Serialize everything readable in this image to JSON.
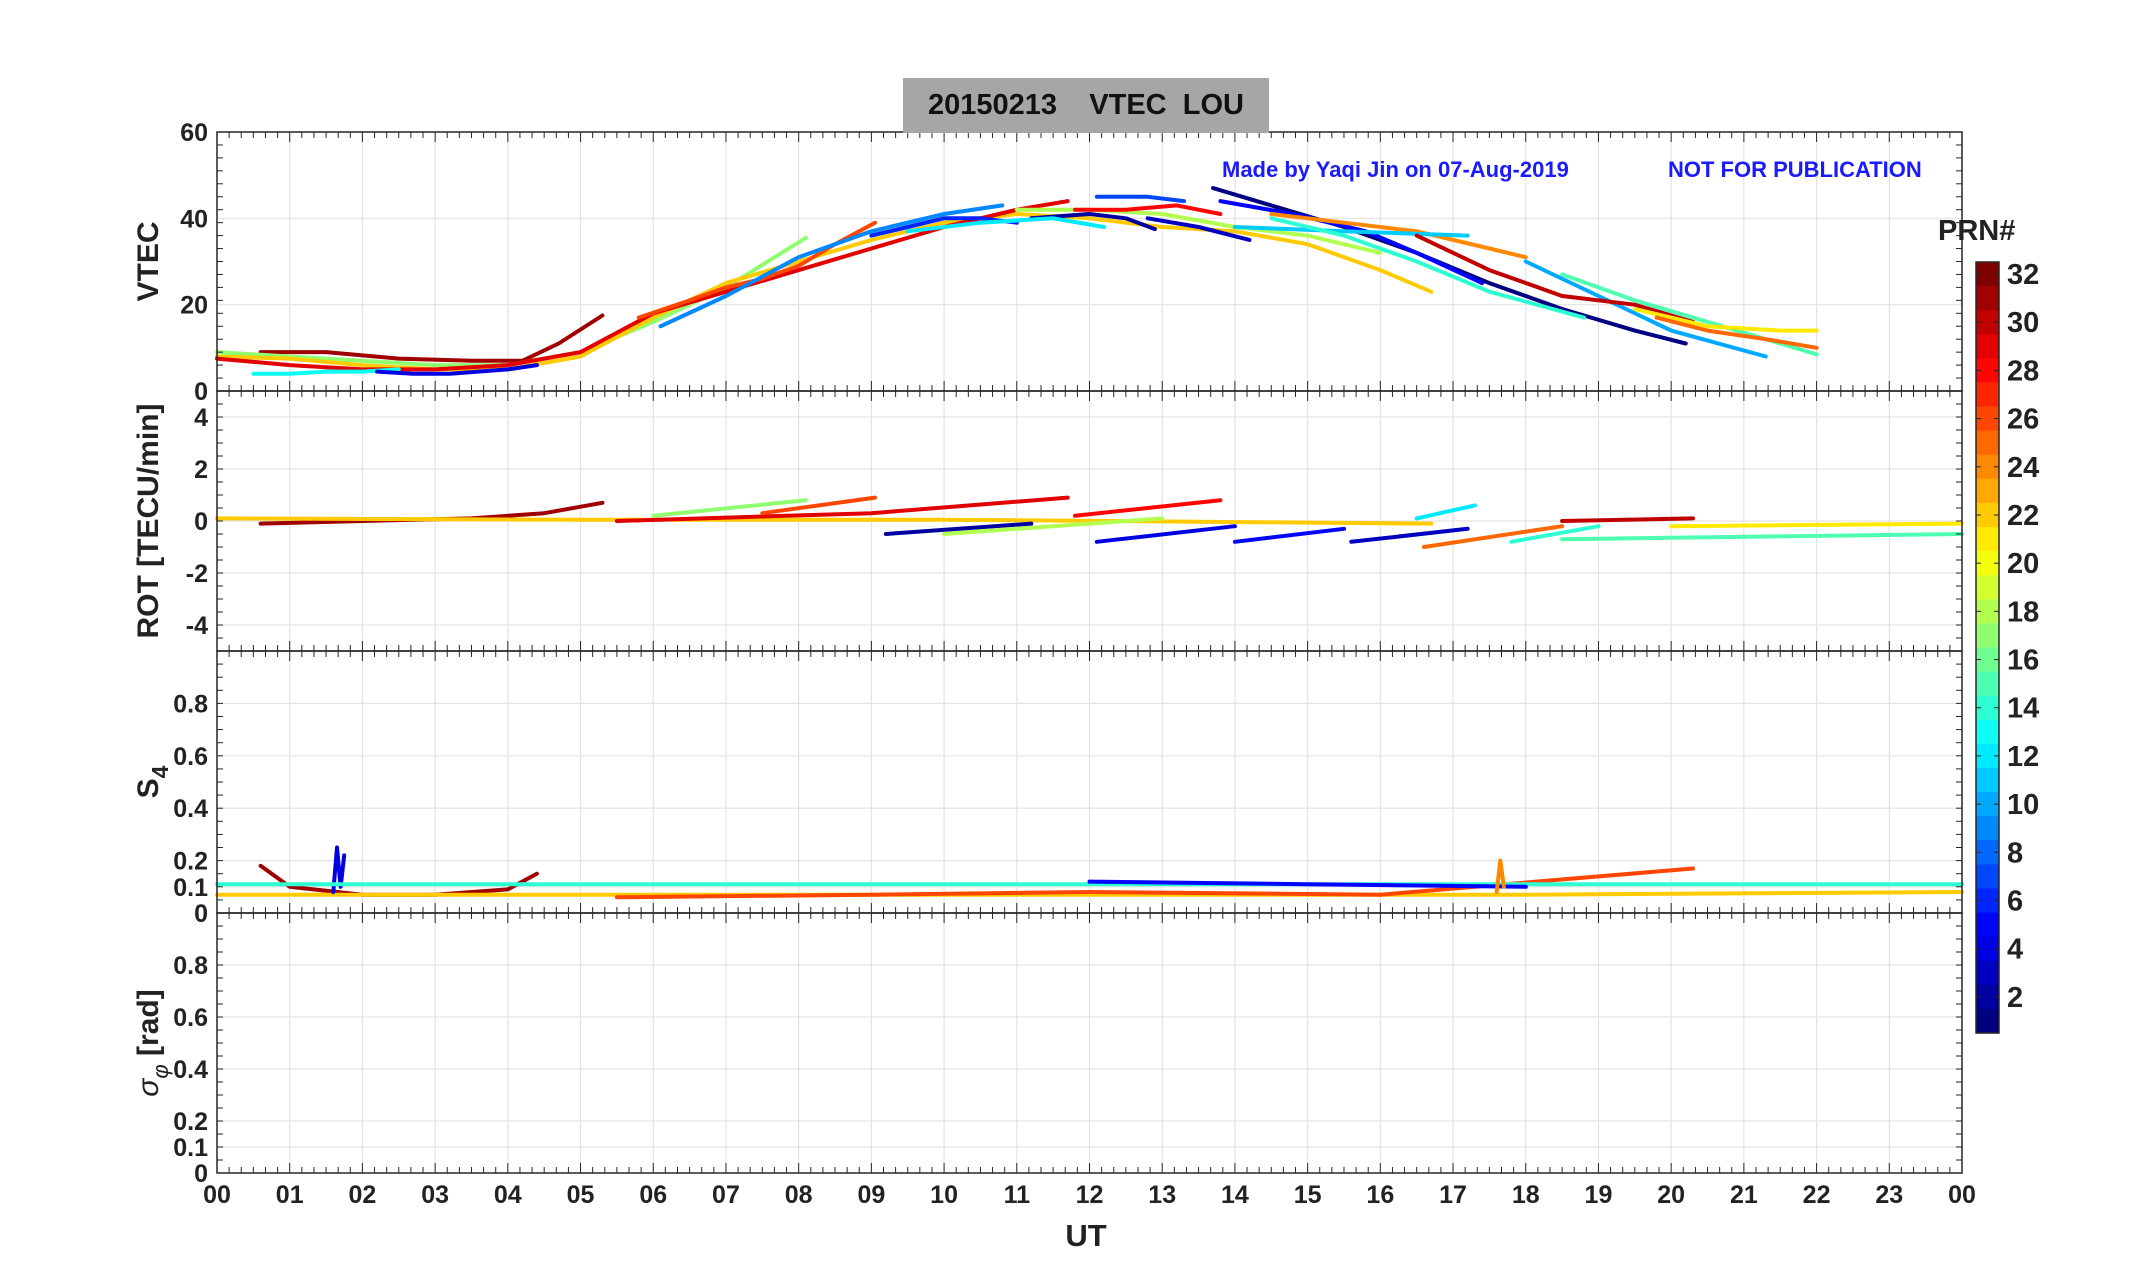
{
  "title": "20150213    VTEC  LOU",
  "credit_left": "Made by Yaqi Jin on 07-Aug-2019",
  "credit_right": "NOT FOR PUBLICATION",
  "credit_color": "#1a1aff",
  "colorbar": {
    "label": "PRN#",
    "range": [
      1,
      32
    ],
    "tick_values": [
      2,
      4,
      6,
      8,
      10,
      12,
      14,
      16,
      18,
      20,
      22,
      24,
      26,
      28,
      30,
      32
    ],
    "tick_labels": [
      "2",
      "4",
      "6",
      "8",
      "10",
      "12",
      "14",
      "16",
      "18",
      "20",
      "22",
      "24",
      "26",
      "28",
      "30",
      "32"
    ],
    "colormap": "jet"
  },
  "x_axis": {
    "label": "UT",
    "range": [
      0,
      24
    ],
    "tick_values": [
      0,
      1,
      2,
      3,
      4,
      5,
      6,
      7,
      8,
      9,
      10,
      11,
      12,
      13,
      14,
      15,
      16,
      17,
      18,
      19,
      20,
      21,
      22,
      23,
      24
    ],
    "tick_labels": [
      "00",
      "01",
      "02",
      "03",
      "04",
      "05",
      "06",
      "07",
      "08",
      "09",
      "10",
      "11",
      "12",
      "13",
      "14",
      "15",
      "16",
      "17",
      "18",
      "19",
      "20",
      "21",
      "22",
      "23",
      "00"
    ]
  },
  "chart_data": [
    {
      "type": "line",
      "panel": "vtec",
      "ylabel": "VTEC",
      "ylim": [
        0,
        60
      ],
      "yticks": [
        0,
        20,
        40,
        60
      ],
      "ytick_labels": [
        "0",
        "20",
        "40",
        "60"
      ],
      "grid": true,
      "series": [
        {
          "prn": 31,
          "x": [
            0.6,
            1.5,
            2.5,
            3.5,
            4.2,
            4.7,
            5.3
          ],
          "y": [
            9,
            9,
            7.5,
            7,
            7,
            11,
            17.5
          ]
        },
        {
          "prn": 17,
          "x": [
            0,
            1,
            2,
            3,
            4,
            5,
            6,
            7,
            8.1
          ],
          "y": [
            9,
            8,
            7,
            6,
            6,
            9,
            16,
            24,
            35.5
          ]
        },
        {
          "prn": 22,
          "x": [
            0,
            1,
            2,
            3,
            4,
            5,
            6,
            7,
            8,
            9,
            10,
            11,
            12,
            13,
            14,
            15,
            16,
            16.7
          ],
          "y": [
            8,
            7.5,
            6,
            5,
            5,
            8,
            17,
            25,
            30,
            35,
            39,
            41,
            40,
            38,
            37,
            34,
            28,
            23
          ]
        },
        {
          "prn": 29,
          "x": [
            0,
            1,
            2,
            3,
            4,
            5,
            6,
            7,
            8,
            9,
            10,
            11,
            11.7
          ],
          "y": [
            7.5,
            6,
            5,
            5,
            6,
            9,
            18,
            23,
            28,
            33,
            38,
            42,
            44
          ]
        },
        {
          "prn": 26,
          "x": [
            5.8,
            6.5,
            7,
            7.5,
            8,
            8.5,
            9.05
          ],
          "y": [
            17,
            21,
            24,
            26,
            29,
            34,
            39
          ]
        },
        {
          "prn": 13,
          "x": [
            0.5,
            1,
            1.5,
            2,
            2.5
          ],
          "y": [
            4,
            4,
            4.5,
            4.5,
            5
          ]
        },
        {
          "prn": 4,
          "x": [
            2.2,
            2.7,
            3.2,
            4,
            4.4
          ],
          "y": [
            4.5,
            4,
            4,
            5,
            6
          ]
        },
        {
          "prn": 9,
          "x": [
            6.1,
            7,
            8,
            9,
            10,
            10.8
          ],
          "y": [
            15,
            22,
            31,
            37,
            41,
            43
          ]
        },
        {
          "prn": 6,
          "x": [
            9.0,
            9.5,
            10,
            10.5,
            11
          ],
          "y": [
            36,
            38,
            40,
            40,
            39
          ]
        },
        {
          "prn": 2,
          "x": [
            11.2,
            12,
            12.5,
            12.9
          ],
          "y": [
            40,
            41,
            40,
            37.5
          ]
        },
        {
          "prn": 12,
          "x": [
            9.5,
            10.5,
            11.5,
            12.2
          ],
          "y": [
            37,
            39,
            40,
            38
          ]
        },
        {
          "prn": 18,
          "x": [
            11.0,
            12,
            13,
            14,
            15,
            16
          ],
          "y": [
            42,
            42,
            41,
            38,
            36,
            32
          ]
        },
        {
          "prn": 7,
          "x": [
            12.1,
            12.8,
            13.3
          ],
          "y": [
            45,
            45,
            44
          ]
        },
        {
          "prn": 28,
          "x": [
            11.8,
            12.5,
            13.2,
            13.8
          ],
          "y": [
            42,
            42,
            43,
            41
          ]
        },
        {
          "prn": 3,
          "x": [
            12.8,
            13.5,
            14.2
          ],
          "y": [
            40,
            38,
            35
          ]
        },
        {
          "prn": 1,
          "x": [
            13.7,
            14.5,
            15.5,
            16.5,
            17.5,
            18.5,
            19.5,
            20.2
          ],
          "y": [
            47,
            43,
            38,
            32,
            25,
            19,
            14,
            11
          ]
        },
        {
          "prn": 5,
          "x": [
            13.8,
            14.8,
            15.8,
            16.5,
            17.4
          ],
          "y": [
            44,
            41,
            37,
            32,
            25
          ]
        },
        {
          "prn": 24,
          "x": [
            14.5,
            15.5,
            16.5,
            17.5,
            18.0
          ],
          "y": [
            41,
            39,
            37,
            33,
            31
          ]
        },
        {
          "prn": 11,
          "x": [
            14.0,
            15.5,
            17.2
          ],
          "y": [
            38,
            37,
            36
          ]
        },
        {
          "prn": 14,
          "x": [
            14.5,
            15.5,
            16.5,
            17.5,
            18.8
          ],
          "y": [
            40,
            36,
            30,
            23,
            17
          ]
        },
        {
          "prn": 10,
          "x": [
            18.0,
            19,
            20,
            21.3
          ],
          "y": [
            30,
            22,
            14,
            8
          ]
        },
        {
          "prn": 30,
          "x": [
            16.5,
            17.5,
            18.5,
            19.5,
            20.3
          ],
          "y": [
            36,
            28,
            22,
            20,
            16
          ]
        },
        {
          "prn": 15,
          "x": [
            18.5,
            19.5,
            20.5,
            21.5,
            22.0
          ],
          "y": [
            27,
            21,
            16,
            11,
            8.5
          ]
        },
        {
          "prn": 21,
          "x": [
            19.5,
            20.5,
            21.5,
            22.0
          ],
          "y": [
            19,
            15,
            14,
            14
          ]
        },
        {
          "prn": 25,
          "x": [
            19.8,
            20.5,
            21.3,
            22.0
          ],
          "y": [
            17,
            14,
            12,
            10
          ]
        }
      ]
    },
    {
      "type": "line",
      "panel": "rot",
      "ylabel": "ROT [TECU/min]",
      "ylim": [
        -5,
        5
      ],
      "yticks": [
        -4,
        -2,
        0,
        2,
        4
      ],
      "ytick_labels": [
        "-4",
        "-2",
        "0",
        "2",
        "4"
      ],
      "grid": true,
      "series": [
        {
          "prn": 31,
          "x": [
            0.6,
            2,
            3.5,
            4.5,
            5.3
          ],
          "y": [
            -0.1,
            0,
            0.1,
            0.3,
            0.7
          ]
        },
        {
          "prn": 22,
          "x": [
            0,
            5,
            10,
            16.7
          ],
          "y": [
            0.1,
            0.05,
            0.05,
            -0.1
          ]
        },
        {
          "prn": 29,
          "x": [
            5.5,
            9,
            11.7
          ],
          "y": [
            0,
            0.3,
            0.9
          ]
        },
        {
          "prn": 26,
          "x": [
            7.5,
            9.05
          ],
          "y": [
            0.3,
            0.9
          ]
        },
        {
          "prn": 17,
          "x": [
            6,
            8.1
          ],
          "y": [
            0.2,
            0.8
          ]
        },
        {
          "prn": 28,
          "x": [
            11.8,
            13.8
          ],
          "y": [
            0.2,
            0.8
          ]
        },
        {
          "prn": 2,
          "x": [
            9.2,
            11.2
          ],
          "y": [
            -0.5,
            -0.1
          ]
        },
        {
          "prn": 4,
          "x": [
            12.1,
            14
          ],
          "y": [
            -0.8,
            -0.2
          ]
        },
        {
          "prn": 5,
          "x": [
            14,
            15.5
          ],
          "y": [
            -0.8,
            -0.3
          ]
        },
        {
          "prn": 3,
          "x": [
            15.6,
            17.2
          ],
          "y": [
            -0.8,
            -0.3
          ]
        },
        {
          "prn": 25,
          "x": [
            16.6,
            18.5
          ],
          "y": [
            -1.0,
            -0.2
          ]
        },
        {
          "prn": 14,
          "x": [
            17.8,
            19
          ],
          "y": [
            -0.8,
            -0.2
          ]
        },
        {
          "prn": 15,
          "x": [
            18.5,
            24
          ],
          "y": [
            -0.7,
            -0.5
          ]
        },
        {
          "prn": 30,
          "x": [
            18.5,
            20.3
          ],
          "y": [
            0,
            0.1
          ]
        },
        {
          "prn": 21,
          "x": [
            20,
            24
          ],
          "y": [
            -0.2,
            -0.1
          ]
        },
        {
          "prn": 12,
          "x": [
            16.5,
            17.3
          ],
          "y": [
            0.1,
            0.6
          ]
        },
        {
          "prn": 18,
          "x": [
            10,
            13
          ],
          "y": [
            -0.5,
            0.1
          ]
        }
      ]
    },
    {
      "type": "line",
      "panel": "s4",
      "ylabel": "S4",
      "ylim": [
        0,
        1
      ],
      "yticks": [
        0,
        0.1,
        0.2,
        0.4,
        0.6,
        0.8
      ],
      "ytick_labels": [
        "0",
        "0.1",
        "0.2",
        "0.4",
        "0.6",
        "0.8"
      ],
      "grid": true,
      "series": [
        {
          "prn": 31,
          "x": [
            0.6,
            1,
            2,
            3,
            4,
            4.4
          ],
          "y": [
            0.18,
            0.1,
            0.07,
            0.07,
            0.09,
            0.15
          ]
        },
        {
          "prn": 22,
          "x": [
            0,
            6,
            12,
            18,
            24
          ],
          "y": [
            0.07,
            0.07,
            0.07,
            0.07,
            0.08
          ]
        },
        {
          "prn": 26,
          "x": [
            5.5,
            9,
            12,
            16,
            20.3
          ],
          "y": [
            0.06,
            0.07,
            0.08,
            0.07,
            0.17
          ]
        },
        {
          "prn": 4,
          "x": [
            1.6,
            1.65,
            1.7,
            1.75
          ],
          "y": [
            0.08,
            0.25,
            0.1,
            0.22
          ]
        },
        {
          "prn": 14,
          "x": [
            0,
            12,
            24
          ],
          "y": [
            0.11,
            0.11,
            0.11
          ]
        },
        {
          "prn": 5,
          "x": [
            12,
            15,
            18
          ],
          "y": [
            0.12,
            0.11,
            0.1
          ]
        },
        {
          "prn": 24,
          "x": [
            17.6,
            17.65,
            17.7
          ],
          "y": [
            0.08,
            0.2,
            0.1
          ]
        }
      ]
    },
    {
      "type": "line",
      "panel": "sigma_phi",
      "ylabel": "σ_φ [rad]",
      "ylim": [
        0,
        1
      ],
      "yticks": [
        0,
        0.1,
        0.2,
        0.4,
        0.6,
        0.8
      ],
      "ytick_labels": [
        "0",
        "0.1",
        "0.2",
        "0.4",
        "0.6",
        "0.8"
      ],
      "grid": true,
      "series": []
    }
  ]
}
